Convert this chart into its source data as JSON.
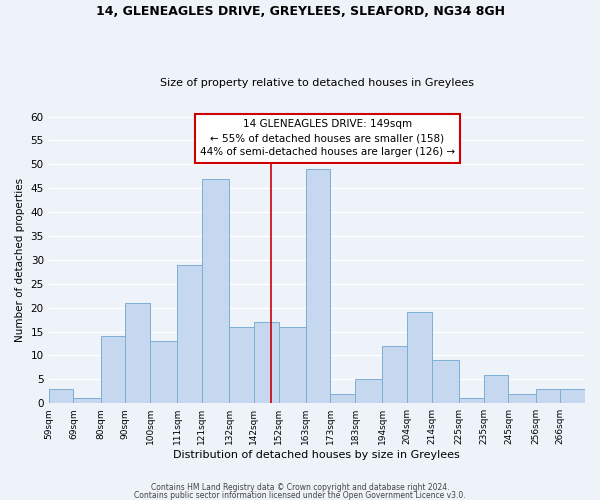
{
  "title": "14, GLENEAGLES DRIVE, GREYLEES, SLEAFORD, NG34 8GH",
  "subtitle": "Size of property relative to detached houses in Greylees",
  "xlabel": "Distribution of detached houses by size in Greylees",
  "ylabel": "Number of detached properties",
  "bin_labels": [
    "59sqm",
    "69sqm",
    "80sqm",
    "90sqm",
    "100sqm",
    "111sqm",
    "121sqm",
    "132sqm",
    "142sqm",
    "152sqm",
    "163sqm",
    "173sqm",
    "183sqm",
    "194sqm",
    "204sqm",
    "214sqm",
    "225sqm",
    "235sqm",
    "245sqm",
    "256sqm",
    "266sqm"
  ],
  "bar_heights": [
    3,
    1,
    14,
    21,
    13,
    29,
    47,
    16,
    17,
    16,
    49,
    2,
    5,
    12,
    19,
    9,
    1,
    6,
    2,
    3,
    3
  ],
  "bar_color": "#c5d8f0",
  "bar_edgecolor": "#7bafd4",
  "vline_x": 149,
  "vline_color": "#cc0000",
  "ylim": [
    0,
    60
  ],
  "yticks": [
    0,
    5,
    10,
    15,
    20,
    25,
    30,
    35,
    40,
    45,
    50,
    55,
    60
  ],
  "annotation_title": "14 GLENEAGLES DRIVE: 149sqm",
  "annotation_line1": "← 55% of detached houses are smaller (158)",
  "annotation_line2": "44% of semi-detached houses are larger (126) →",
  "annotation_box_color": "#ffffff",
  "annotation_box_edgecolor": "#cc0000",
  "footer1": "Contains HM Land Registry data © Crown copyright and database right 2024.",
  "footer2": "Contains public sector information licensed under the Open Government Licence v3.0.",
  "background_color": "#eef2f9",
  "grid_color": "#ffffff",
  "actual_bins": [
    59,
    69,
    80,
    90,
    100,
    111,
    121,
    132,
    142,
    152,
    163,
    173,
    183,
    194,
    204,
    214,
    225,
    235,
    245,
    256,
    266,
    276
  ]
}
